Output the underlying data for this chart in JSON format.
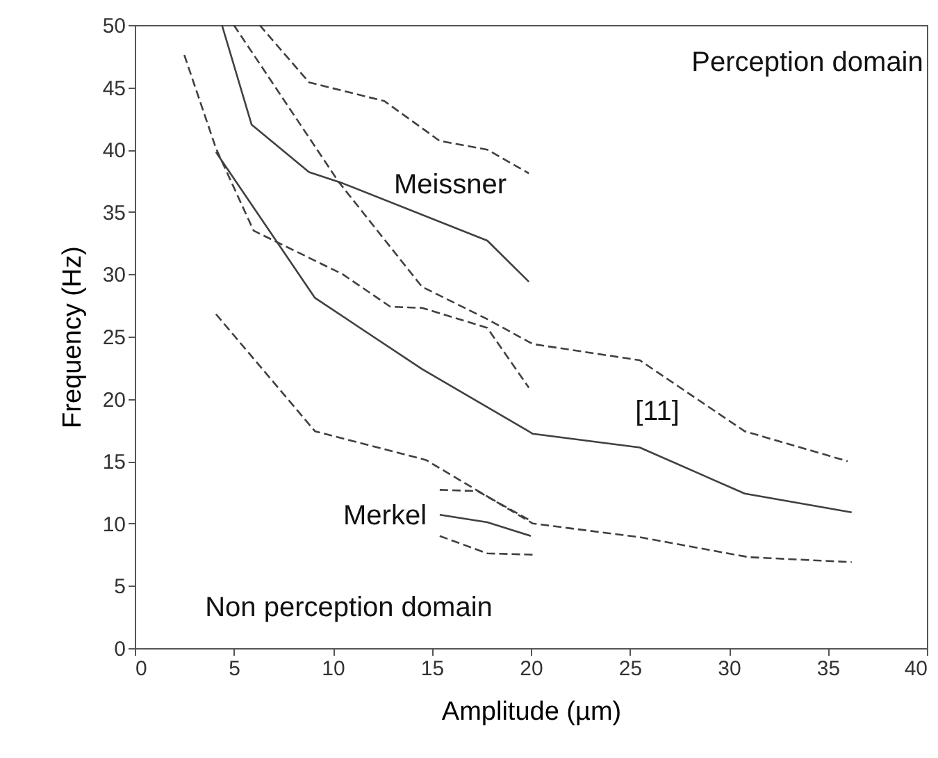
{
  "chart_data": {
    "type": "line",
    "xlabel": "Amplitude (µm)",
    "ylabel": "Frequency (Hz)",
    "xlim": [
      0,
      40
    ],
    "ylim": [
      0,
      50
    ],
    "xticks": [
      0,
      5,
      10,
      15,
      20,
      25,
      30,
      35,
      40
    ],
    "yticks": [
      0,
      5,
      10,
      15,
      20,
      25,
      30,
      35,
      40,
      45,
      50
    ],
    "grid": false,
    "marker": "none",
    "series": [
      {
        "color": "#404040",
        "line_style": "solid",
        "x": [
          4.4,
          5.9,
          8.8,
          10.5,
          17.8,
          19.9
        ],
        "values": [
          50,
          42,
          38.2,
          37.3,
          32.7,
          29.4
        ]
      },
      {
        "color": "#404040",
        "line_style": "dashed",
        "x": [
          6.3,
          8.8,
          12.6,
          15.4,
          17.8,
          19.9
        ],
        "values": [
          50,
          45.4,
          43.9,
          40.7,
          40,
          38.1
        ]
      },
      {
        "color": "#404040",
        "line_style": "dashed",
        "x": [
          5.0,
          10.3,
          14.5,
          17.8,
          20.1,
          25.5,
          30.8,
          36.0
        ],
        "values": [
          50,
          37.4,
          29.0,
          26.4,
          24.4,
          23.1,
          17.4,
          15.0
        ]
      },
      {
        "color": "#404040",
        "line_style": "dashed",
        "x": [
          2.5,
          4.1,
          6.0,
          10.5,
          12.9,
          14.5,
          17.8,
          19.9
        ],
        "values": [
          47.6,
          40.1,
          33.5,
          30.0,
          27.4,
          27.3,
          25.7,
          20.9
        ]
      },
      {
        "color": "#404040",
        "line_style": "solid",
        "x": [
          4.1,
          9.1,
          14.5,
          20.1,
          25.5,
          30.8,
          36.2
        ],
        "values": [
          39.8,
          28.1,
          22.4,
          17.2,
          16.1,
          12.4,
          10.9
        ]
      },
      {
        "color": "#404040",
        "line_style": "dashed",
        "x": [
          4.1,
          9.1,
          14.7,
          20.1,
          25.5,
          31.0,
          36.2
        ],
        "values": [
          26.8,
          17.4,
          15.1,
          10.0,
          8.9,
          7.3,
          6.9
        ]
      },
      {
        "color": "#404040",
        "line_style": "solid",
        "x": [
          15.4,
          17.8,
          20.0
        ],
        "values": [
          10.7,
          10.1,
          9.0
        ]
      },
      {
        "color": "#404040",
        "line_style": "dashed",
        "x": [
          15.4,
          17.3,
          19.9
        ],
        "values": [
          12.7,
          12.6,
          10.3
        ]
      },
      {
        "color": "#404040",
        "line_style": "dashed",
        "x": [
          15.4,
          17.8,
          20.1
        ],
        "values": [
          9.0,
          7.6,
          7.5
        ]
      }
    ],
    "annotations": [
      "Meissner",
      "[11]",
      "Merkel",
      "Perception domain",
      "Non perception domain"
    ]
  }
}
